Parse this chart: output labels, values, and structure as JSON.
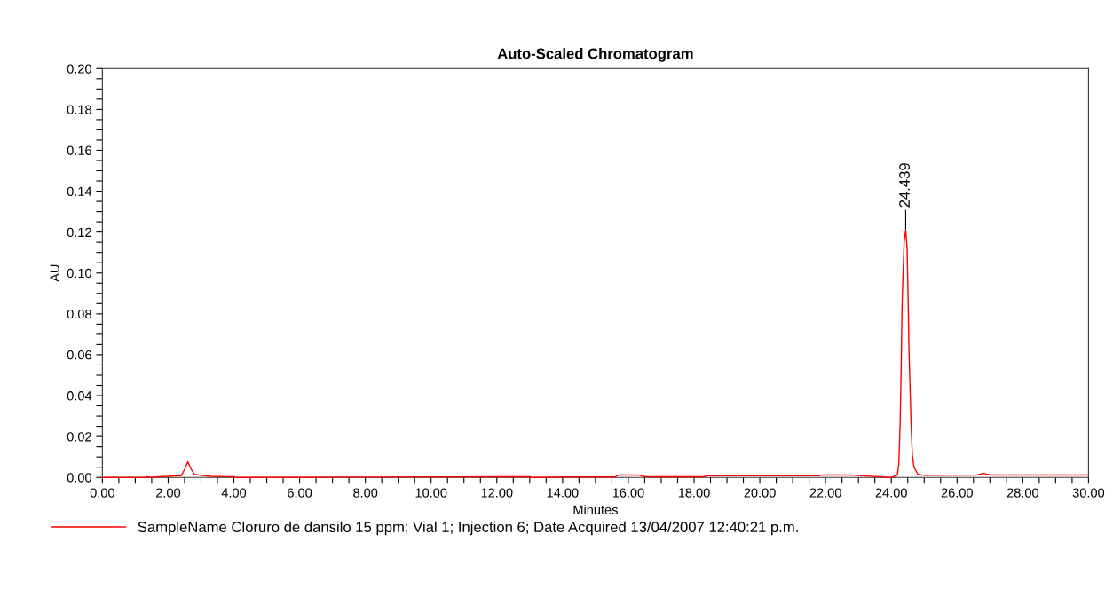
{
  "chart_data": {
    "type": "line",
    "title": "Auto-Scaled Chromatogram",
    "xlabel": "Minutes",
    "ylabel": "AU",
    "xlim": [
      0,
      30
    ],
    "ylim": [
      0,
      0.2
    ],
    "xticks": [
      {
        "value": 0,
        "label": "0.00"
      },
      {
        "value": 0.5,
        "label": null
      },
      {
        "value": 1,
        "label": null
      },
      {
        "value": 1.5,
        "label": null
      },
      {
        "value": 2,
        "label": "2.00"
      },
      {
        "value": 2.5,
        "label": null
      },
      {
        "value": 3,
        "label": null
      },
      {
        "value": 3.5,
        "label": null
      },
      {
        "value": 4,
        "label": "4.00"
      },
      {
        "value": 4.5,
        "label": null
      },
      {
        "value": 5,
        "label": null
      },
      {
        "value": 5.5,
        "label": null
      },
      {
        "value": 6,
        "label": "6.00"
      },
      {
        "value": 6.5,
        "label": null
      },
      {
        "value": 7,
        "label": null
      },
      {
        "value": 7.5,
        "label": null
      },
      {
        "value": 8,
        "label": "8.00"
      },
      {
        "value": 8.5,
        "label": null
      },
      {
        "value": 9,
        "label": null
      },
      {
        "value": 9.5,
        "label": null
      },
      {
        "value": 10,
        "label": "10.00"
      },
      {
        "value": 10.5,
        "label": null
      },
      {
        "value": 11,
        "label": null
      },
      {
        "value": 11.5,
        "label": null
      },
      {
        "value": 12,
        "label": "12.00"
      },
      {
        "value": 12.5,
        "label": null
      },
      {
        "value": 13,
        "label": null
      },
      {
        "value": 13.5,
        "label": null
      },
      {
        "value": 14,
        "label": "14.00"
      },
      {
        "value": 14.5,
        "label": null
      },
      {
        "value": 15,
        "label": null
      },
      {
        "value": 15.5,
        "label": null
      },
      {
        "value": 16,
        "label": "16.00"
      },
      {
        "value": 16.5,
        "label": null
      },
      {
        "value": 17,
        "label": null
      },
      {
        "value": 17.5,
        "label": null
      },
      {
        "value": 18,
        "label": "18.00"
      },
      {
        "value": 18.5,
        "label": null
      },
      {
        "value": 19,
        "label": null
      },
      {
        "value": 19.5,
        "label": null
      },
      {
        "value": 20,
        "label": "20.00"
      },
      {
        "value": 20.5,
        "label": null
      },
      {
        "value": 21,
        "label": null
      },
      {
        "value": 21.5,
        "label": null
      },
      {
        "value": 22,
        "label": "22.00"
      },
      {
        "value": 22.5,
        "label": null
      },
      {
        "value": 23,
        "label": null
      },
      {
        "value": 23.5,
        "label": null
      },
      {
        "value": 24,
        "label": "24.00"
      },
      {
        "value": 24.5,
        "label": null
      },
      {
        "value": 25,
        "label": null
      },
      {
        "value": 25.5,
        "label": null
      },
      {
        "value": 26,
        "label": "26.00"
      },
      {
        "value": 26.5,
        "label": null
      },
      {
        "value": 27,
        "label": null
      },
      {
        "value": 27.5,
        "label": null
      },
      {
        "value": 28,
        "label": "28.00"
      },
      {
        "value": 28.5,
        "label": null
      },
      {
        "value": 29,
        "label": null
      },
      {
        "value": 29.5,
        "label": null
      },
      {
        "value": 30,
        "label": "30.00"
      }
    ],
    "yticks": [
      {
        "value": 0,
        "label": "0.00"
      },
      {
        "value": 0.005,
        "label": null
      },
      {
        "value": 0.01,
        "label": null
      },
      {
        "value": 0.015,
        "label": null
      },
      {
        "value": 0.02,
        "label": "0.02"
      },
      {
        "value": 0.025,
        "label": null
      },
      {
        "value": 0.03,
        "label": null
      },
      {
        "value": 0.035,
        "label": null
      },
      {
        "value": 0.04,
        "label": "0.04"
      },
      {
        "value": 0.045,
        "label": null
      },
      {
        "value": 0.05,
        "label": null
      },
      {
        "value": 0.055,
        "label": null
      },
      {
        "value": 0.06,
        "label": "0.06"
      },
      {
        "value": 0.065,
        "label": null
      },
      {
        "value": 0.07,
        "label": null
      },
      {
        "value": 0.075,
        "label": null
      },
      {
        "value": 0.08,
        "label": "0.08"
      },
      {
        "value": 0.085,
        "label": null
      },
      {
        "value": 0.09,
        "label": null
      },
      {
        "value": 0.095,
        "label": null
      },
      {
        "value": 0.1,
        "label": "0.10"
      },
      {
        "value": 0.105,
        "label": null
      },
      {
        "value": 0.11,
        "label": null
      },
      {
        "value": 0.115,
        "label": null
      },
      {
        "value": 0.12,
        "label": "0.12"
      },
      {
        "value": 0.125,
        "label": null
      },
      {
        "value": 0.13,
        "label": null
      },
      {
        "value": 0.135,
        "label": null
      },
      {
        "value": 0.14,
        "label": "0.14"
      },
      {
        "value": 0.145,
        "label": null
      },
      {
        "value": 0.15,
        "label": null
      },
      {
        "value": 0.155,
        "label": null
      },
      {
        "value": 0.16,
        "label": "0.16"
      },
      {
        "value": 0.165,
        "label": null
      },
      {
        "value": 0.17,
        "label": null
      },
      {
        "value": 0.175,
        "label": null
      },
      {
        "value": 0.18,
        "label": "0.18"
      },
      {
        "value": 0.185,
        "label": null
      },
      {
        "value": 0.19,
        "label": null
      },
      {
        "value": 0.195,
        "label": null
      },
      {
        "value": 0.2,
        "label": "0.20"
      }
    ],
    "grid": false,
    "legend": "bottom",
    "marker": "none",
    "line_style": "solid",
    "annotations": [
      {
        "text": "24.439",
        "x": 24.439,
        "y": 0.121
      }
    ],
    "series": [
      {
        "name": "SampleName Cloruro de dansilo 15 ppm; Vial 1; Injection 6; Date Acquired 13/04/2007 12:40:21 p.m.",
        "color": "#ff0000",
        "x": [
          0,
          1.3,
          1.35,
          1.45,
          1.7,
          2.0,
          2.4,
          2.5,
          2.6,
          2.7,
          2.8,
          3.0,
          3.3,
          4.0,
          4.05,
          12.2,
          13.0,
          13.05,
          14.0,
          15.6,
          15.7,
          16.3,
          16.5,
          18.3,
          18.4,
          21.8,
          21.9,
          22.8,
          22.9,
          24.0,
          24.18,
          24.23,
          24.27,
          24.3,
          24.33,
          24.39,
          24.42,
          24.439,
          24.48,
          24.51,
          24.54,
          24.57,
          24.6,
          24.64,
          24.69,
          24.81,
          25.0,
          26.6,
          26.8,
          27.0,
          30.0
        ],
        "values": [
          0,
          0,
          0.0003,
          0,
          0.0003,
          0.0005,
          0.0008,
          0.004,
          0.0077,
          0.004,
          0.0015,
          0.001,
          0.0005,
          0.0003,
          0,
          0.0003,
          0.0003,
          0,
          0.0002,
          0.0002,
          0.0012,
          0.0012,
          0.0003,
          0.0003,
          0.0008,
          0.0008,
          0.0012,
          0.0012,
          0.001,
          0,
          0.001,
          0.0065,
          0.027,
          0.053,
          0.086,
          0.115,
          0.119,
          0.121,
          0.112,
          0.089,
          0.061,
          0.044,
          0.027,
          0.011,
          0.005,
          0.0015,
          0.001,
          0.0012,
          0.002,
          0.0012,
          0.0012
        ]
      }
    ]
  }
}
